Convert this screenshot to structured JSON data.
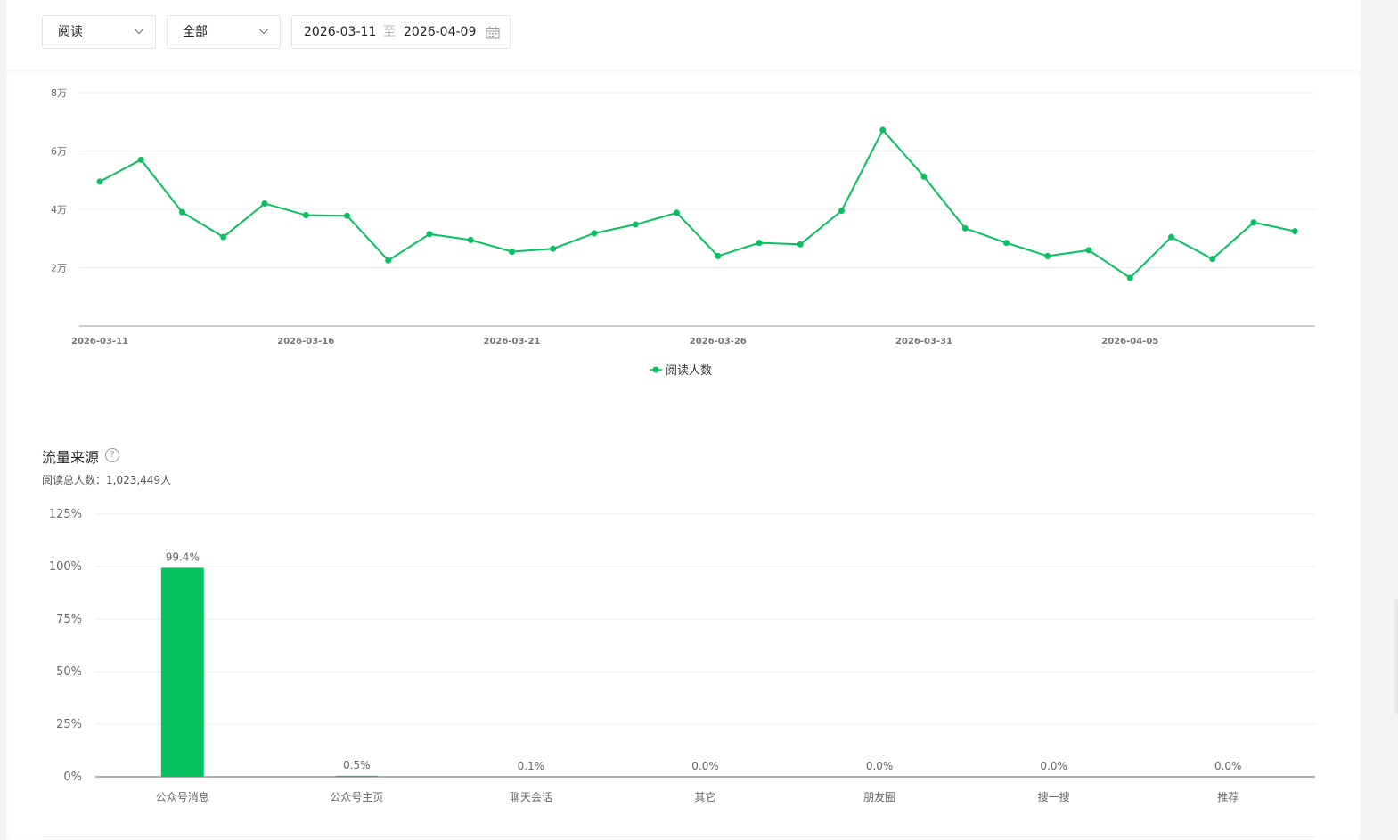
{
  "filters": {
    "metric_select": "阅读",
    "scope_select": "全部",
    "date_start": "2026-03-11",
    "date_separator": "至",
    "date_end": "2026-04-09"
  },
  "trend": {
    "legend": "阅读人数",
    "y_ticks": [
      "2万",
      "4万",
      "6万",
      "8万"
    ],
    "x_ticks": [
      "2026-03-11",
      "2026-03-16",
      "2026-03-21",
      "2026-03-26",
      "2026-03-31",
      "2026-04-05"
    ]
  },
  "traffic": {
    "title": "流量来源",
    "total_text": "阅读总人数：1,023,449人"
  },
  "colors": {
    "accent": "#07c160",
    "grid": "#ececec",
    "axis": "#bfbfbf"
  },
  "icons": [
    "chevron-down-icon",
    "calendar-icon",
    "help-icon"
  ],
  "chart_data": [
    {
      "type": "line",
      "x": [
        "2026-03-11",
        "2026-03-12",
        "2026-03-13",
        "2026-03-14",
        "2026-03-15",
        "2026-03-16",
        "2026-03-17",
        "2026-03-18",
        "2026-03-19",
        "2026-03-20",
        "2026-03-21",
        "2026-03-22",
        "2026-03-23",
        "2026-03-24",
        "2026-03-25",
        "2026-03-26",
        "2026-03-27",
        "2026-03-28",
        "2026-03-29",
        "2026-03-30",
        "2026-03-31",
        "2026-04-01",
        "2026-04-02",
        "2026-04-03",
        "2026-04-04",
        "2026-04-05",
        "2026-04-06",
        "2026-04-07",
        "2026-04-08",
        "2026-04-09"
      ],
      "series": [
        {
          "name": "阅读人数",
          "values": [
            49500,
            57000,
            39000,
            30500,
            42000,
            38000,
            37800,
            22500,
            31500,
            29500,
            25500,
            26500,
            31800,
            34800,
            38800,
            24000,
            28500,
            28000,
            39500,
            67200,
            51200,
            33500,
            28500,
            24000,
            26000,
            16500,
            30500,
            23000,
            35500,
            32500
          ]
        }
      ],
      "ylim": [
        0,
        80000
      ],
      "y_ticks": [
        20000,
        40000,
        60000,
        80000
      ],
      "grid": true,
      "legend_position": "bottom-center"
    },
    {
      "type": "bar",
      "categories": [
        "公众号消息",
        "公众号主页",
        "聊天会话",
        "其它",
        "朋友圈",
        "搜一搜",
        "推荐"
      ],
      "values": [
        99.4,
        0.5,
        0.1,
        0.0,
        0.0,
        0.0,
        0.0
      ],
      "labels": [
        "99.4%",
        "0.5%",
        "0.1%",
        "0.0%",
        "0.0%",
        "0.0%",
        "0.0%"
      ],
      "ylim": [
        0,
        125
      ],
      "y_ticks": [
        "0%",
        "25%",
        "50%",
        "75%",
        "100%",
        "125%"
      ],
      "y_tick_values": [
        0,
        25,
        50,
        75,
        100,
        125
      ],
      "grid": true
    }
  ]
}
